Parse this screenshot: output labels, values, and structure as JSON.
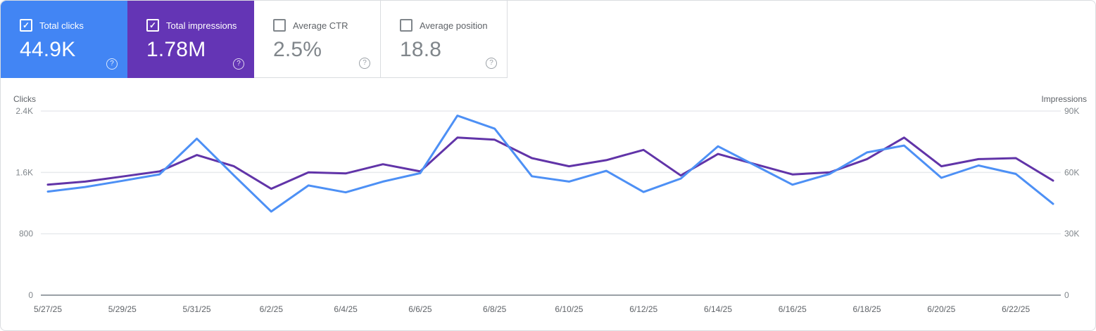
{
  "icons": {
    "help_glyph": "?",
    "check_glyph": "✓"
  },
  "colors": {
    "clicks_blue": "#4285f4",
    "impressions_purple": "#6435b5",
    "clicks_line": "#4d90f5",
    "impressions_line": "#6134a8",
    "grid": "#e8eaed",
    "axis": "#9aa0a6",
    "tick_text": "#80868b",
    "date_text": "#5f6368",
    "panel_border": "#dadce0"
  },
  "cards": [
    {
      "label": "Total clicks",
      "value": "44.9K",
      "checked": true
    },
    {
      "label": "Total impressions",
      "value": "1.78M",
      "checked": true
    },
    {
      "label": "Average CTR",
      "value": "2.5%",
      "checked": false
    },
    {
      "label": "Average position",
      "value": "18.8",
      "checked": false
    }
  ],
  "chart_data": {
    "type": "line",
    "x": [
      "5/27/25",
      "5/28/25",
      "5/29/25",
      "5/30/25",
      "5/31/25",
      "6/1/25",
      "6/2/25",
      "6/3/25",
      "6/4/25",
      "6/5/25",
      "6/6/25",
      "6/7/25",
      "6/8/25",
      "6/9/25",
      "6/10/25",
      "6/11/25",
      "6/12/25",
      "6/13/25",
      "6/14/25",
      "6/15/25",
      "6/16/25",
      "6/17/25",
      "6/18/25",
      "6/19/25",
      "6/20/25",
      "6/21/25",
      "6/22/25",
      "6/23/25"
    ],
    "x_tick_labels": [
      "5/27/25",
      "5/29/25",
      "5/31/25",
      "6/2/25",
      "6/4/25",
      "6/6/25",
      "6/8/25",
      "6/10/25",
      "6/12/25",
      "6/14/25",
      "6/16/25",
      "6/18/25",
      "6/20/25",
      "6/22/25"
    ],
    "series": [
      {
        "name": "Clicks",
        "axis": "left",
        "color": "#4d90f5",
        "values": [
          1350,
          1410,
          1490,
          1575,
          2040,
          1560,
          1090,
          1430,
          1340,
          1480,
          1590,
          2340,
          2170,
          1550,
          1480,
          1620,
          1345,
          1520,
          1940,
          1690,
          1440,
          1580,
          1860,
          1950,
          1530,
          1690,
          1580,
          1190
        ]
      },
      {
        "name": "Impressions",
        "axis": "right",
        "color": "#6134a8",
        "values": [
          54000,
          55500,
          58000,
          60500,
          68500,
          63000,
          52000,
          60000,
          59500,
          64000,
          60500,
          77000,
          76000,
          67000,
          63000,
          66000,
          71000,
          58500,
          69000,
          64000,
          59000,
          60000,
          66500,
          77000,
          63000,
          66500,
          67000,
          56000
        ]
      }
    ],
    "left_axis": {
      "title": "Clicks",
      "max": 2400,
      "tick_values": [
        2400,
        1600,
        800,
        0
      ],
      "tick_labels": [
        "2.4K",
        "1.6K",
        "800",
        "0"
      ]
    },
    "right_axis": {
      "title": "Impressions",
      "max": 90000,
      "tick_values": [
        90000,
        60000,
        30000,
        0
      ],
      "tick_labels": [
        "90K",
        "60K",
        "30K",
        "0"
      ]
    },
    "grid": true,
    "legend": "none"
  }
}
